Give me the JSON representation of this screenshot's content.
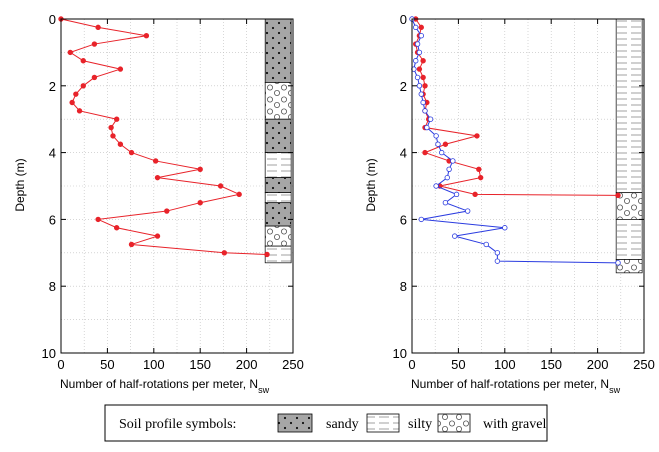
{
  "chart_data": [
    {
      "type": "line",
      "xlabel": "Number of half-rotations per meter, N",
      "xlabel_sub": "sw",
      "ylabel": "Depth  (m)",
      "xlim": [
        0,
        250
      ],
      "ylim": [
        0,
        10
      ],
      "y_inverted": true,
      "grid": true,
      "x_ticks": [
        "0",
        "50",
        "100",
        "150",
        "200",
        "250"
      ],
      "y_ticks": [
        "0",
        "2",
        "4",
        "6",
        "8",
        "10"
      ],
      "series": [
        {
          "color": "#e8232a",
          "marker": "filled-circle",
          "points": [
            [
              0,
              0
            ],
            [
              40,
              0.25
            ],
            [
              92,
              0.5
            ],
            [
              36,
              0.75
            ],
            [
              10,
              1.0
            ],
            [
              24,
              1.25
            ],
            [
              64,
              1.5
            ],
            [
              36,
              1.75
            ],
            [
              24,
              2.0
            ],
            [
              16,
              2.25
            ],
            [
              12,
              2.5
            ],
            [
              20,
              2.75
            ],
            [
              60,
              3.0
            ],
            [
              54,
              3.25
            ],
            [
              56,
              3.5
            ],
            [
              64,
              3.75
            ],
            [
              76,
              4.0
            ],
            [
              102,
              4.25
            ],
            [
              150,
              4.5
            ],
            [
              104,
              4.75
            ],
            [
              172,
              5.0
            ],
            [
              192,
              5.25
            ],
            [
              150,
              5.5
            ],
            [
              114,
              5.75
            ],
            [
              40,
              6.0
            ],
            [
              60,
              6.25
            ],
            [
              104,
              6.5
            ],
            [
              76,
              6.75
            ],
            [
              176,
              7.0
            ],
            [
              222,
              7.05
            ]
          ]
        }
      ],
      "soil_column": {
        "x_range": [
          220,
          248
        ],
        "layers": [
          {
            "type": "sandy",
            "top": 0.0,
            "bottom": 1.9
          },
          {
            "type": "gravel",
            "top": 1.9,
            "bottom": 3.0
          },
          {
            "type": "sandy",
            "top": 3.0,
            "bottom": 4.0
          },
          {
            "type": "silty",
            "top": 4.0,
            "bottom": 4.75
          },
          {
            "type": "sandy",
            "top": 4.75,
            "bottom": 5.2
          },
          {
            "type": "silty",
            "top": 5.2,
            "bottom": 5.5
          },
          {
            "type": "sandy",
            "top": 5.5,
            "bottom": 6.2
          },
          {
            "type": "gravel",
            "top": 6.2,
            "bottom": 6.8
          },
          {
            "type": "silty",
            "top": 6.8,
            "bottom": 7.3
          }
        ]
      }
    },
    {
      "type": "line",
      "xlabel": "Number of half-rotations per meter, N",
      "xlabel_sub": "sw",
      "ylabel": "Depth  (m)",
      "xlim": [
        0,
        250
      ],
      "ylim": [
        0,
        10
      ],
      "y_inverted": true,
      "grid": true,
      "x_ticks": [
        "0",
        "50",
        "100",
        "150",
        "200",
        "250"
      ],
      "y_ticks": [
        "0",
        "2",
        "4",
        "6",
        "8",
        "10"
      ],
      "series": [
        {
          "color": "#e8232a",
          "marker": "filled-circle",
          "points": [
            [
              4,
              0
            ],
            [
              10,
              0.25
            ],
            [
              8,
              0.5
            ],
            [
              4,
              0.75
            ],
            [
              6,
              1.0
            ],
            [
              12,
              1.25
            ],
            [
              8,
              1.5
            ],
            [
              12,
              1.75
            ],
            [
              14,
              2.0
            ],
            [
              12,
              2.25
            ],
            [
              16,
              2.5
            ],
            [
              14,
              2.75
            ],
            [
              18,
              3.0
            ],
            [
              14,
              3.25
            ],
            [
              70,
              3.5
            ],
            [
              36,
              3.75
            ],
            [
              14,
              4.0
            ],
            [
              40,
              4.25
            ],
            [
              72,
              4.5
            ],
            [
              74,
              4.75
            ],
            [
              30,
              5.0
            ],
            [
              68,
              5.25
            ],
            [
              222,
              5.28
            ]
          ]
        },
        {
          "color": "#2b3ce0",
          "marker": "open-circle",
          "points": [
            [
              0,
              0
            ],
            [
              4,
              0.25
            ],
            [
              10,
              0.5
            ],
            [
              6,
              0.75
            ],
            [
              8,
              1.0
            ],
            [
              4,
              1.25
            ],
            [
              2,
              1.5
            ],
            [
              6,
              1.75
            ],
            [
              8,
              2.0
            ],
            [
              10,
              2.25
            ],
            [
              12,
              2.5
            ],
            [
              14,
              2.75
            ],
            [
              20,
              3.0
            ],
            [
              16,
              3.25
            ],
            [
              26,
              3.5
            ],
            [
              28,
              3.75
            ],
            [
              32,
              4.0
            ],
            [
              44,
              4.25
            ],
            [
              40,
              4.5
            ],
            [
              38,
              4.75
            ],
            [
              26,
              5.0
            ],
            [
              48,
              5.25
            ],
            [
              36,
              5.5
            ],
            [
              60,
              5.75
            ],
            [
              10,
              6.0
            ],
            [
              100,
              6.25
            ],
            [
              46,
              6.5
            ],
            [
              80,
              6.75
            ],
            [
              92,
              7.0
            ],
            [
              92,
              7.25
            ],
            [
              222,
              7.3
            ]
          ]
        }
      ],
      "soil_column": {
        "x_range": [
          220,
          248
        ],
        "layers": [
          {
            "type": "silty",
            "top": 0.0,
            "bottom": 5.2
          },
          {
            "type": "gravel",
            "top": 5.2,
            "bottom": 6.0
          },
          {
            "type": "silty",
            "top": 6.0,
            "bottom": 7.2
          },
          {
            "type": "gravel",
            "top": 7.2,
            "bottom": 7.6
          }
        ]
      }
    }
  ],
  "legend": {
    "title": "Soil profile symbols:",
    "sandy_label": "sandy",
    "silty_label": "silty",
    "gravel_label": "with gravel"
  }
}
